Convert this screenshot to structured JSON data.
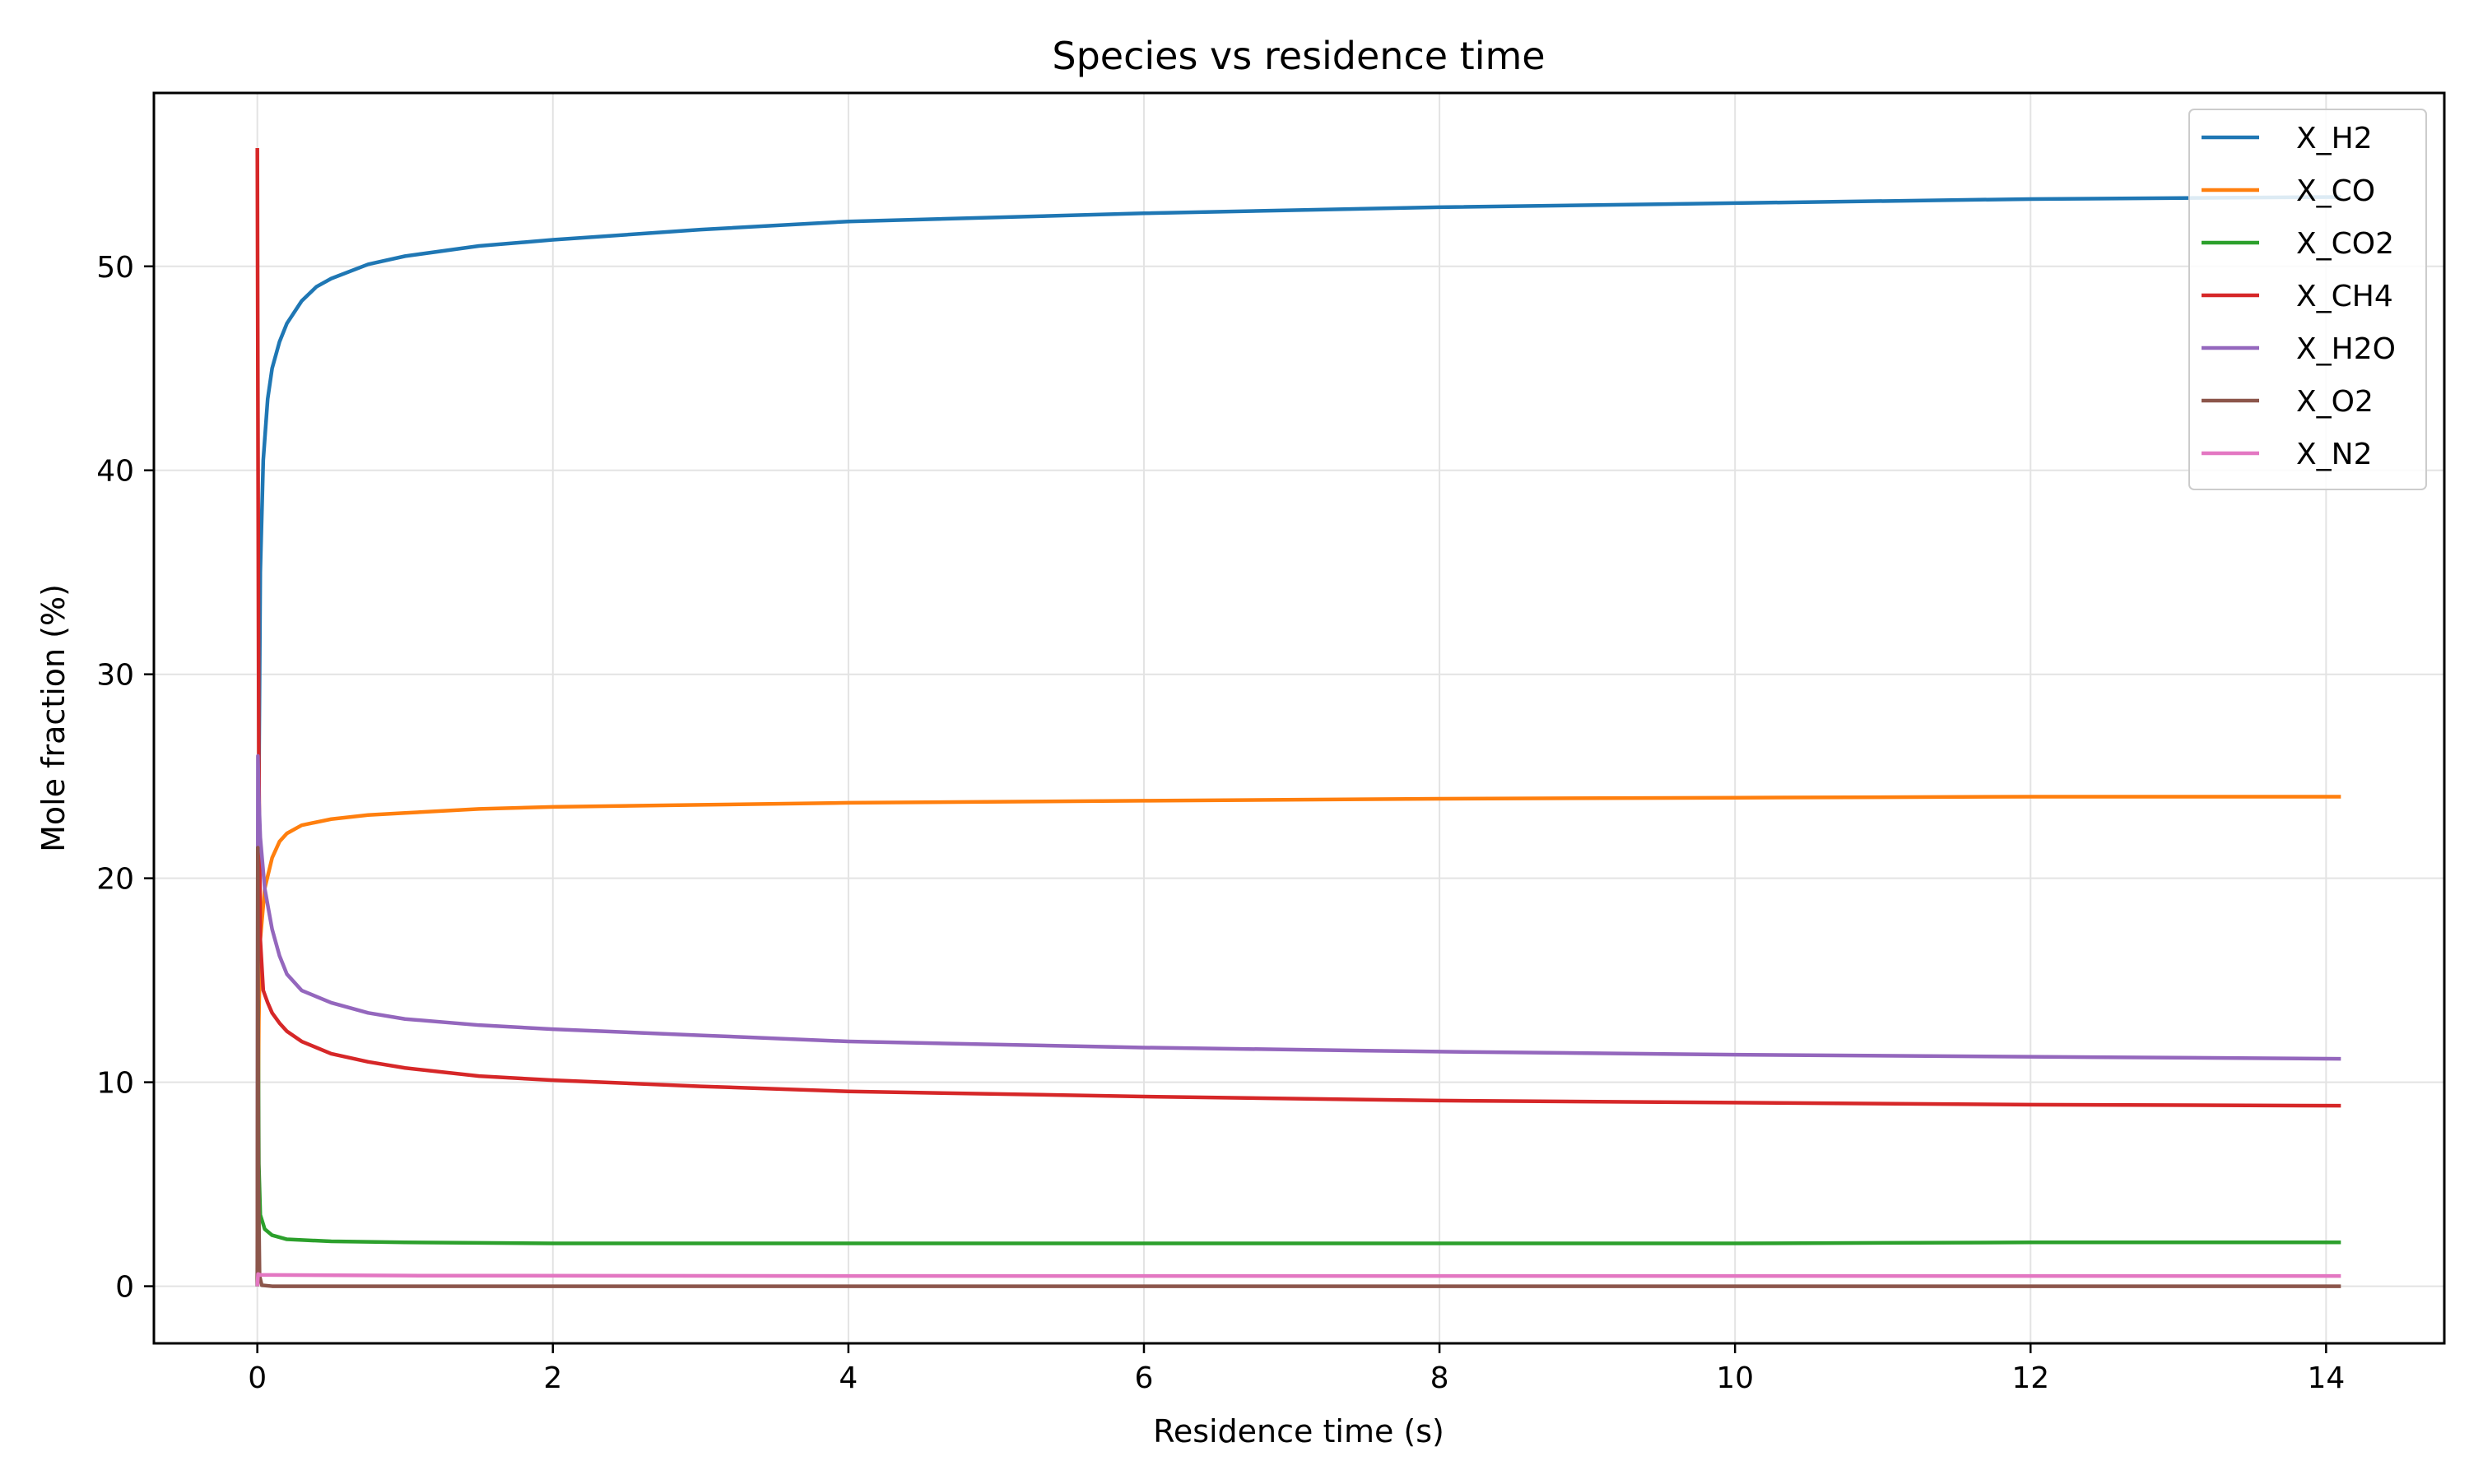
{
  "chart_data": {
    "type": "line",
    "title": "Species vs residence time",
    "xlabel": "Residence time (s)",
    "ylabel": "Mole fraction (%)",
    "xlim": [
      -0.7,
      14.8
    ],
    "ylim": [
      -2.8,
      58.5
    ],
    "x_ticks": [
      0,
      2,
      4,
      6,
      8,
      10,
      12,
      14
    ],
    "y_ticks": [
      0,
      10,
      20,
      30,
      40,
      50
    ],
    "x_tick_labels": [
      "0",
      "2",
      "4",
      "6",
      "8",
      "10",
      "12",
      "14"
    ],
    "y_tick_labels": [
      "0",
      "10",
      "20",
      "30",
      "40",
      "50"
    ],
    "grid": true,
    "legend_position": "top-right",
    "series": [
      {
        "name": "X_H2",
        "color": "#1f77b4",
        "points": [
          [
            0.0,
            0.0
          ],
          [
            0.005,
            10.0
          ],
          [
            0.01,
            24.0
          ],
          [
            0.02,
            35.0
          ],
          [
            0.04,
            40.5
          ],
          [
            0.07,
            43.5
          ],
          [
            0.1,
            45.0
          ],
          [
            0.15,
            46.3
          ],
          [
            0.2,
            47.2
          ],
          [
            0.3,
            48.3
          ],
          [
            0.4,
            49.0
          ],
          [
            0.5,
            49.4
          ],
          [
            0.75,
            50.1
          ],
          [
            1.0,
            50.5
          ],
          [
            1.5,
            51.0
          ],
          [
            2.0,
            51.3
          ],
          [
            3.0,
            51.8
          ],
          [
            4.0,
            52.2
          ],
          [
            6.0,
            52.6
          ],
          [
            8.0,
            52.9
          ],
          [
            10.0,
            53.1
          ],
          [
            12.0,
            53.3
          ],
          [
            14.1,
            53.4
          ]
        ]
      },
      {
        "name": "X_CO",
        "color": "#ff7f0e",
        "points": [
          [
            0.0,
            0.0
          ],
          [
            0.005,
            8.0
          ],
          [
            0.01,
            13.0
          ],
          [
            0.02,
            17.0
          ],
          [
            0.05,
            19.5
          ],
          [
            0.1,
            21.0
          ],
          [
            0.15,
            21.8
          ],
          [
            0.2,
            22.2
          ],
          [
            0.3,
            22.6
          ],
          [
            0.5,
            22.9
          ],
          [
            0.75,
            23.1
          ],
          [
            1.0,
            23.2
          ],
          [
            1.5,
            23.4
          ],
          [
            2.0,
            23.5
          ],
          [
            3.0,
            23.6
          ],
          [
            4.0,
            23.7
          ],
          [
            6.0,
            23.8
          ],
          [
            8.0,
            23.9
          ],
          [
            10.0,
            23.95
          ],
          [
            12.0,
            24.0
          ],
          [
            14.1,
            24.0
          ]
        ]
      },
      {
        "name": "X_CO2",
        "color": "#2ca02c",
        "points": [
          [
            0.0,
            0.0
          ],
          [
            0.005,
            14.0
          ],
          [
            0.01,
            6.0
          ],
          [
            0.02,
            3.5
          ],
          [
            0.05,
            2.8
          ],
          [
            0.1,
            2.5
          ],
          [
            0.2,
            2.3
          ],
          [
            0.5,
            2.2
          ],
          [
            1.0,
            2.15
          ],
          [
            2.0,
            2.1
          ],
          [
            4.0,
            2.1
          ],
          [
            6.0,
            2.1
          ],
          [
            8.0,
            2.1
          ],
          [
            10.0,
            2.1
          ],
          [
            12.0,
            2.15
          ],
          [
            14.1,
            2.15
          ]
        ]
      },
      {
        "name": "X_CH4",
        "color": "#d62728",
        "points": [
          [
            0.0,
            55.8
          ],
          [
            0.005,
            40.0
          ],
          [
            0.01,
            26.0
          ],
          [
            0.02,
            17.0
          ],
          [
            0.04,
            14.5
          ],
          [
            0.07,
            13.9
          ],
          [
            0.1,
            13.4
          ],
          [
            0.15,
            12.9
          ],
          [
            0.2,
            12.5
          ],
          [
            0.3,
            12.0
          ],
          [
            0.5,
            11.4
          ],
          [
            0.75,
            11.0
          ],
          [
            1.0,
            10.7
          ],
          [
            1.5,
            10.3
          ],
          [
            2.0,
            10.1
          ],
          [
            3.0,
            9.8
          ],
          [
            4.0,
            9.55
          ],
          [
            6.0,
            9.3
          ],
          [
            8.0,
            9.1
          ],
          [
            10.0,
            9.0
          ],
          [
            12.0,
            8.9
          ],
          [
            14.1,
            8.85
          ]
        ]
      },
      {
        "name": "X_H2O",
        "color": "#9467bd",
        "points": [
          [
            0.0,
            0.0
          ],
          [
            0.004,
            26.0
          ],
          [
            0.01,
            24.0
          ],
          [
            0.02,
            22.0
          ],
          [
            0.05,
            19.5
          ],
          [
            0.1,
            17.5
          ],
          [
            0.15,
            16.2
          ],
          [
            0.2,
            15.3
          ],
          [
            0.3,
            14.5
          ],
          [
            0.5,
            13.9
          ],
          [
            0.75,
            13.4
          ],
          [
            1.0,
            13.1
          ],
          [
            1.5,
            12.8
          ],
          [
            2.0,
            12.6
          ],
          [
            3.0,
            12.3
          ],
          [
            4.0,
            12.0
          ],
          [
            6.0,
            11.7
          ],
          [
            8.0,
            11.5
          ],
          [
            10.0,
            11.35
          ],
          [
            12.0,
            11.25
          ],
          [
            14.1,
            11.15
          ]
        ]
      },
      {
        "name": "X_O2",
        "color": "#8c564b",
        "points": [
          [
            0.0,
            0.0
          ],
          [
            0.003,
            21.5
          ],
          [
            0.008,
            5.0
          ],
          [
            0.015,
            0.5
          ],
          [
            0.03,
            0.05
          ],
          [
            0.1,
            0.0
          ],
          [
            1.0,
            0.0
          ],
          [
            14.1,
            0.0
          ]
        ]
      },
      {
        "name": "X_N2",
        "color": "#e377c2",
        "points": [
          [
            0.0,
            0.0
          ],
          [
            0.005,
            0.6
          ],
          [
            0.02,
            0.55
          ],
          [
            0.1,
            0.55
          ],
          [
            1.0,
            0.52
          ],
          [
            4.0,
            0.5
          ],
          [
            8.0,
            0.5
          ],
          [
            14.1,
            0.5
          ]
        ]
      }
    ]
  }
}
